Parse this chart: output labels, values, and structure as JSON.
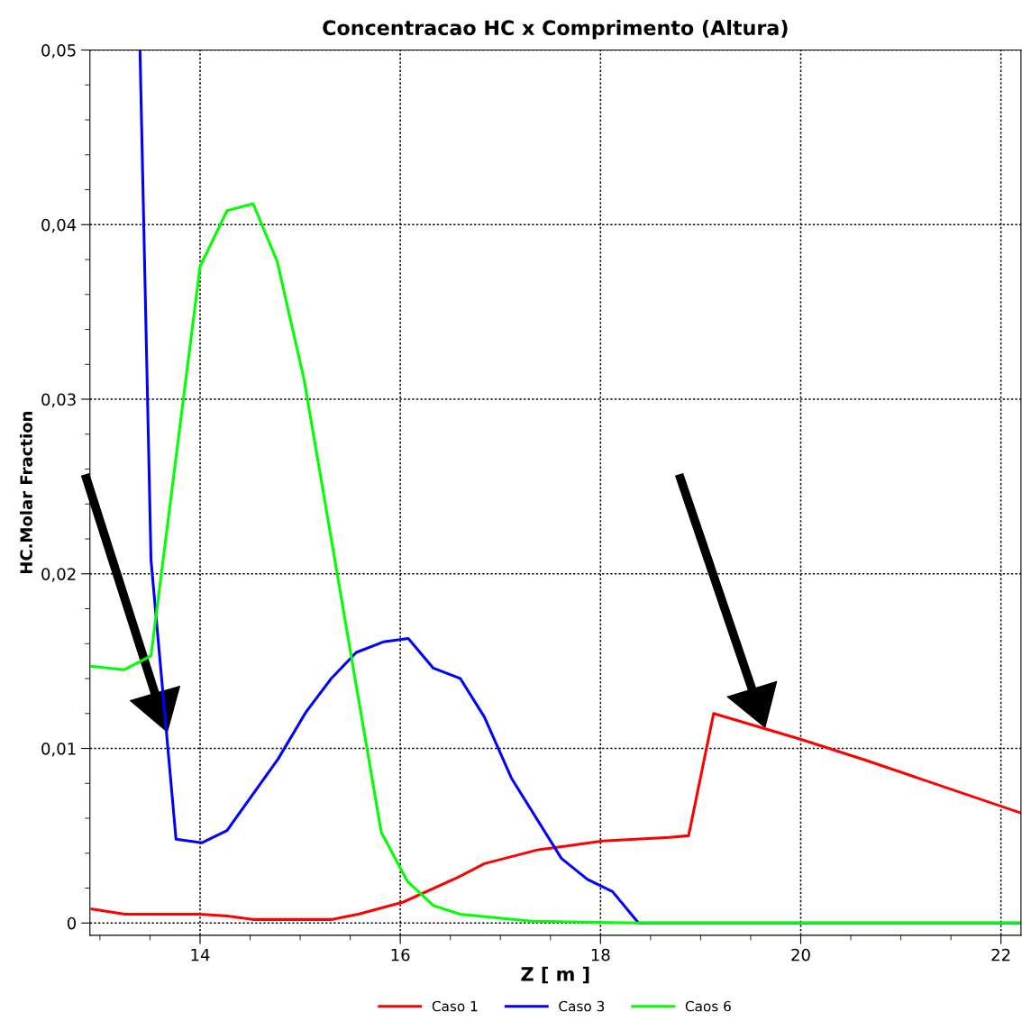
{
  "chart_data": {
    "type": "line",
    "title": "Concentracao HC x Comprimento (Altura)",
    "xlabel": "Z [ m ]",
    "ylabel": "HC.Molar Fraction",
    "xlim": [
      12.9,
      22.2
    ],
    "xticks": [
      14,
      16,
      18,
      20,
      22
    ],
    "ylim": [
      -0.0007,
      0.05
    ],
    "yticks": [
      0,
      {
        "value": 0.01,
        "label": "0,01"
      },
      {
        "value": 0.02,
        "label": "0,02"
      },
      {
        "value": 0.03,
        "label": "0,03"
      },
      {
        "value": 0.04,
        "label": "0,04"
      },
      {
        "value": 0.05,
        "label": "0,05"
      }
    ],
    "grid": true,
    "legend": "bottom",
    "marker": "none",
    "line_style": "solid",
    "series": [
      {
        "name": "Caso 1",
        "color": "#ff0000",
        "x": [
          12.92,
          13.25,
          14.0,
          14.27,
          14.54,
          15.31,
          15.58,
          16.03,
          16.57,
          16.84,
          17.38,
          17.65,
          18.02,
          18.69,
          18.88,
          19.13,
          20.01,
          20.66,
          22.2
        ],
        "values": [
          0.0008,
          0.0005,
          0.0005,
          0.0004,
          0.0002,
          0.0002,
          0.0005,
          0.0012,
          0.0026,
          0.0034,
          0.0042,
          0.0044,
          0.0047,
          0.0049,
          0.005,
          0.012,
          0.0105,
          0.0093,
          0.0063
        ]
      },
      {
        "name": "Caso 3",
        "color": "#0000ff",
        "x": [
          13.4,
          13.51,
          13.76,
          14.02,
          14.27,
          14.78,
          15.06,
          15.31,
          15.56,
          15.83,
          16.08,
          16.33,
          16.6,
          16.84,
          17.11,
          17.61,
          17.87,
          18.12,
          18.38,
          22.2
        ],
        "values": [
          0.05,
          0.0208,
          0.0048,
          0.0046,
          0.0053,
          0.0094,
          0.0121,
          0.014,
          0.0155,
          0.0161,
          0.0163,
          0.0146,
          0.014,
          0.0118,
          0.0083,
          0.0037,
          0.0025,
          0.0018,
          0.0,
          0.0
        ]
      },
      {
        "name": "Caos 6",
        "color": "#00ff00",
        "x": [
          12.92,
          13.24,
          13.51,
          14.0,
          14.27,
          14.53,
          14.77,
          15.04,
          15.81,
          16.07,
          16.33,
          16.6,
          17.31,
          18.36,
          22.2
        ],
        "values": [
          0.0147,
          0.0145,
          0.0153,
          0.0376,
          0.0408,
          0.0412,
          0.0379,
          0.0311,
          0.0052,
          0.0024,
          0.001,
          0.0005,
          0.0001,
          0.0,
          0.0
        ]
      }
    ]
  }
}
